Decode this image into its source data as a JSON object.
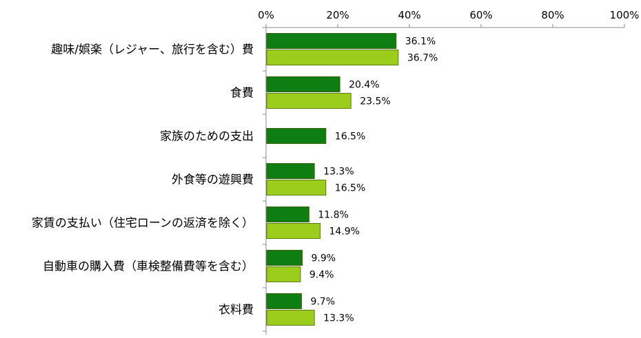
{
  "chart_data": {
    "type": "bar",
    "orientation": "horizontal",
    "categories": [
      "趣味/娯楽（レジャー、旅行を含む）費",
      "食費",
      "家族のための支出",
      "外食等の遊興費",
      "家賃の支払い（住宅ローンの返済を除く）",
      "自動車の購入費（車検整備費等を含む）",
      "衣料費"
    ],
    "series": [
      {
        "color": "#0e7d12",
        "values": [
          36.1,
          20.4,
          16.5,
          13.3,
          11.8,
          9.9,
          9.7
        ],
        "labels": [
          "36.1%",
          "20.4%",
          "16.5%",
          "13.3%",
          "11.8%",
          "9.9%",
          "9.7%"
        ]
      },
      {
        "color": "#9ccc1c",
        "values": [
          36.7,
          23.5,
          null,
          16.5,
          14.9,
          9.4,
          13.3
        ],
        "labels": [
          "36.7%",
          "23.5%",
          null,
          "16.5%",
          "14.9%",
          "9.4%",
          "13.3%"
        ]
      }
    ],
    "xlim": [
      0,
      100
    ],
    "xticks": [
      "0%",
      "20%",
      "40%",
      "60%",
      "80%",
      "100%"
    ],
    "xaxis_position": "top",
    "grid": false,
    "legend": "none"
  }
}
